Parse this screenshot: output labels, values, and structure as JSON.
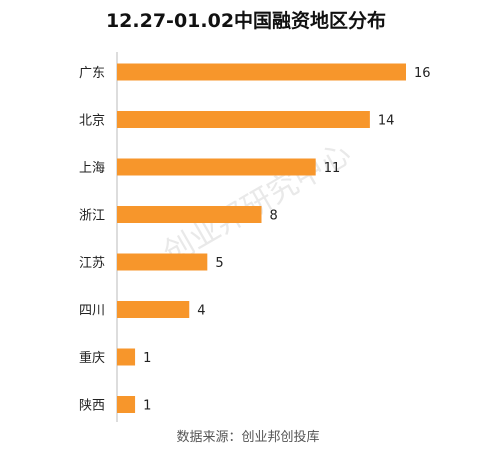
{
  "chart_data": {
    "type": "bar",
    "orientation": "horizontal",
    "title": "12.27-01.02中国融资地区分布",
    "categories": [
      "广东",
      "北京",
      "上海",
      "浙江",
      "江苏",
      "四川",
      "重庆",
      "陕西"
    ],
    "values": [
      16,
      14,
      11,
      8,
      5,
      4,
      1,
      1
    ],
    "xlim": [
      0,
      16
    ],
    "grid": false,
    "legend": "none",
    "bar_color": "#f7962b",
    "axis_color": "#bbbbbb",
    "data_labels": true
  },
  "source_note": "数据来源：创业邦创投库",
  "watermark": "创业邦研究中心"
}
